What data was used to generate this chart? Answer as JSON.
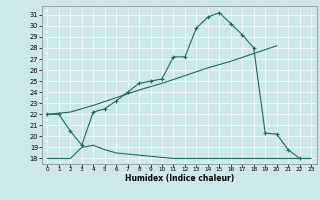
{
  "xlabel": "Humidex (Indice chaleur)",
  "bg_color": "#cce8e8",
  "line_color": "#1a6b5a",
  "xlim": [
    -0.5,
    23.5
  ],
  "ylim": [
    17.5,
    31.8
  ],
  "yticks": [
    18,
    19,
    20,
    21,
    22,
    23,
    24,
    25,
    26,
    27,
    28,
    29,
    30,
    31
  ],
  "xticks": [
    0,
    1,
    2,
    3,
    4,
    5,
    6,
    7,
    8,
    9,
    10,
    11,
    12,
    13,
    14,
    15,
    16,
    17,
    18,
    19,
    20,
    21,
    22,
    23
  ],
  "line1_x": [
    0,
    1,
    2,
    3,
    4,
    5,
    6,
    7,
    8,
    9,
    10,
    11,
    12,
    13,
    14,
    15,
    16,
    17,
    18,
    19,
    20,
    21,
    22
  ],
  "line1_y": [
    22,
    22,
    20.5,
    19.2,
    22.2,
    22.5,
    23.2,
    24.0,
    24.8,
    25.0,
    25.2,
    27.2,
    27.2,
    29.8,
    30.8,
    31.2,
    30.2,
    29.2,
    28.0,
    20.3,
    20.2,
    18.8,
    18.0
  ],
  "line2_x": [
    0,
    2,
    4,
    6,
    8,
    10,
    12,
    14,
    16,
    18,
    20
  ],
  "line2_y": [
    22,
    22.2,
    22.8,
    23.5,
    24.2,
    24.8,
    25.5,
    26.2,
    26.8,
    27.5,
    28.2
  ],
  "line3_x": [
    0,
    1,
    2,
    3,
    4,
    5,
    6,
    7,
    8,
    9,
    10,
    11,
    12,
    13,
    14,
    15,
    16,
    17,
    18,
    19,
    20,
    21,
    22,
    23
  ],
  "line3_y": [
    18.0,
    18.0,
    18.0,
    19.0,
    19.2,
    18.8,
    18.5,
    18.4,
    18.3,
    18.2,
    18.1,
    18.0,
    18.0,
    18.0,
    18.0,
    18.0,
    18.0,
    18.0,
    18.0,
    18.0,
    18.0,
    18.0,
    18.0,
    18.0
  ]
}
